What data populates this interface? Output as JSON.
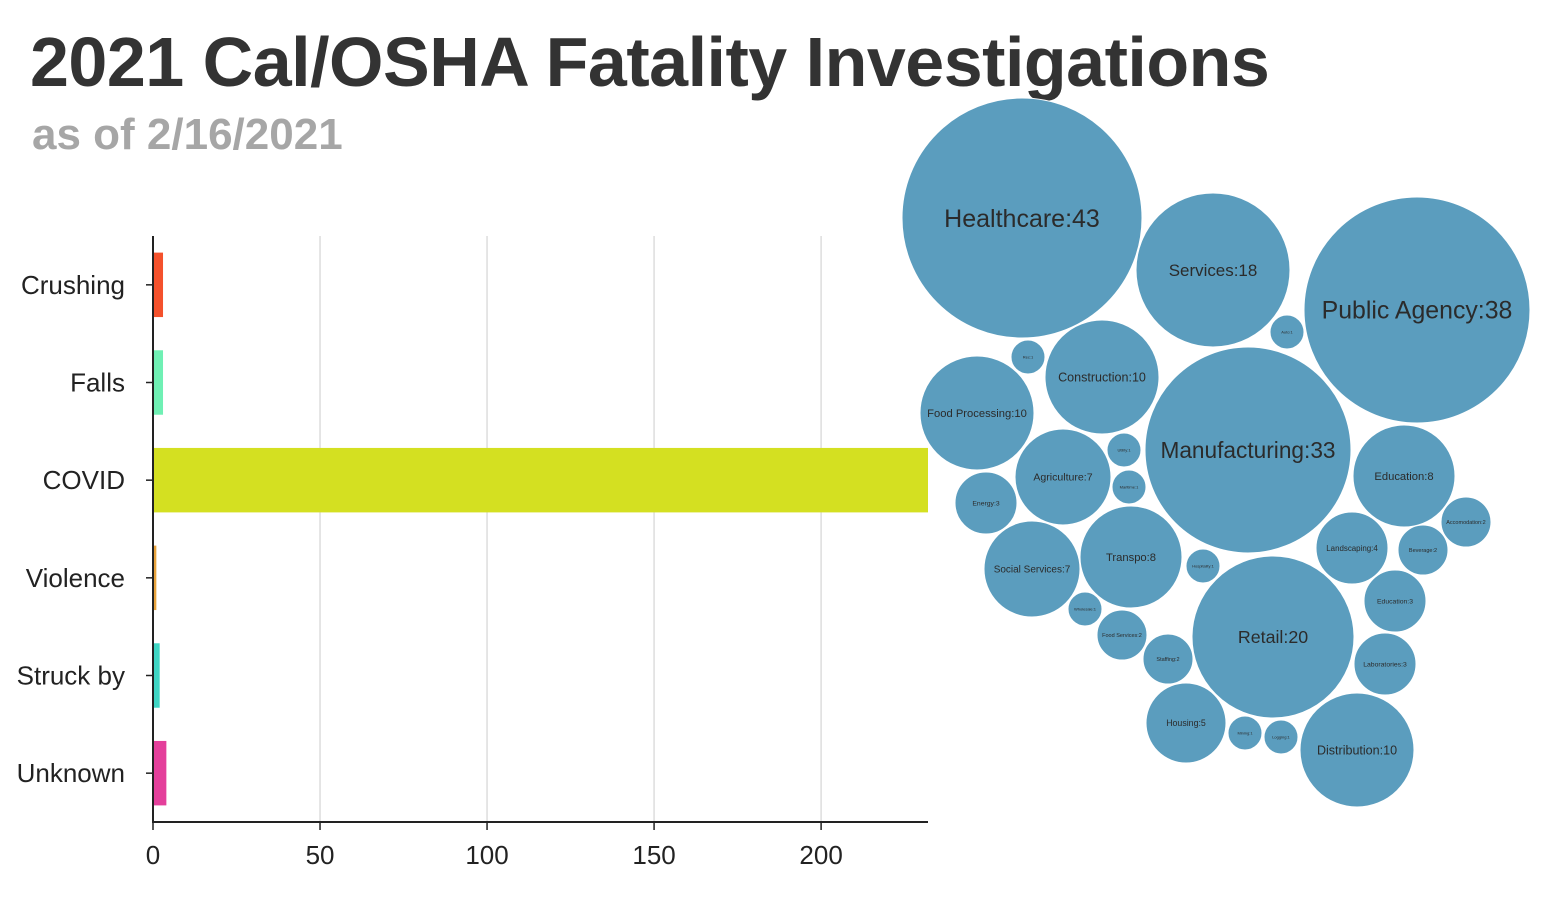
{
  "title": "2021 Cal/OSHA Fatality Investigations",
  "subtitle": "as of 2/16/2021",
  "chart_data": [
    {
      "type": "bar",
      "orientation": "horizontal",
      "categories": [
        "Crushing",
        "Falls",
        "COVID",
        "Violence",
        "Struck by",
        "Unknown"
      ],
      "values": [
        3,
        3,
        232,
        1,
        2,
        4
      ],
      "colors": [
        "#f4512c",
        "#6ff0b4",
        "#d4e021",
        "#e8a33d",
        "#3fd6c4",
        "#e43f9b"
      ],
      "xlim": [
        0,
        232
      ],
      "xticks": [
        0,
        50,
        100,
        150,
        200
      ],
      "grid": true
    },
    {
      "type": "bubble",
      "color": "#5b9dbe",
      "items": [
        {
          "name": "Healthcare",
          "value": 43,
          "label": "Healthcare:43"
        },
        {
          "name": "Public Agency",
          "value": 38,
          "label": "Public Agency:38"
        },
        {
          "name": "Manufacturing",
          "value": 33,
          "label": "Manufacturing:33"
        },
        {
          "name": "Retail",
          "value": 20,
          "label": "Retail:20"
        },
        {
          "name": "Services",
          "value": 18,
          "label": "Services:18"
        },
        {
          "name": "Construction",
          "value": 10,
          "label": "Construction:10"
        },
        {
          "name": "Food Processing",
          "value": 10,
          "label": "Food Processing:10"
        },
        {
          "name": "Distribution",
          "value": 10,
          "label": "Distribution:10"
        },
        {
          "name": "Education",
          "value": 8,
          "label": "Education:8"
        },
        {
          "name": "Transpo",
          "value": 8,
          "label": "Transpo:8"
        },
        {
          "name": "Agriculture",
          "value": 7,
          "label": "Agriculture:7"
        },
        {
          "name": "Social Services",
          "value": 7,
          "label": "Social Services:7"
        },
        {
          "name": "Housing",
          "value": 5,
          "label": "Housing:5"
        },
        {
          "name": "Landscaping",
          "value": 4,
          "label": "Landscaping:4"
        },
        {
          "name": "Energy",
          "value": 3,
          "label": "Energy:3"
        },
        {
          "name": "Education",
          "value": 3,
          "label": "Education:3"
        },
        {
          "name": "Laboratories",
          "value": 3,
          "label": "Laboratories:3"
        },
        {
          "name": "Staffing",
          "value": 2,
          "label": "Staffing:2"
        },
        {
          "name": "Food Services",
          "value": 2,
          "label": "Food Services:2"
        },
        {
          "name": "Beverage",
          "value": 2,
          "label": "Beverage:2"
        },
        {
          "name": "Accomodation",
          "value": 2,
          "label": "Accomodation:2"
        },
        {
          "name": "Rec",
          "value": 1,
          "label": "Rec:1"
        },
        {
          "name": "Auto",
          "value": 1,
          "label": "Auto:1"
        },
        {
          "name": "Utility",
          "value": 1,
          "label": "Utility:1"
        },
        {
          "name": "Maritime",
          "value": 1,
          "label": "Maritime:1"
        },
        {
          "name": "Hospitality",
          "value": 1,
          "label": "Hospitality:1"
        },
        {
          "name": "Wholesale",
          "value": 1,
          "label": "Wholesale:1"
        },
        {
          "name": "Mining",
          "value": 1,
          "label": "Mining:1"
        },
        {
          "name": "Logging",
          "value": 1,
          "label": "Logging:1"
        }
      ]
    }
  ]
}
